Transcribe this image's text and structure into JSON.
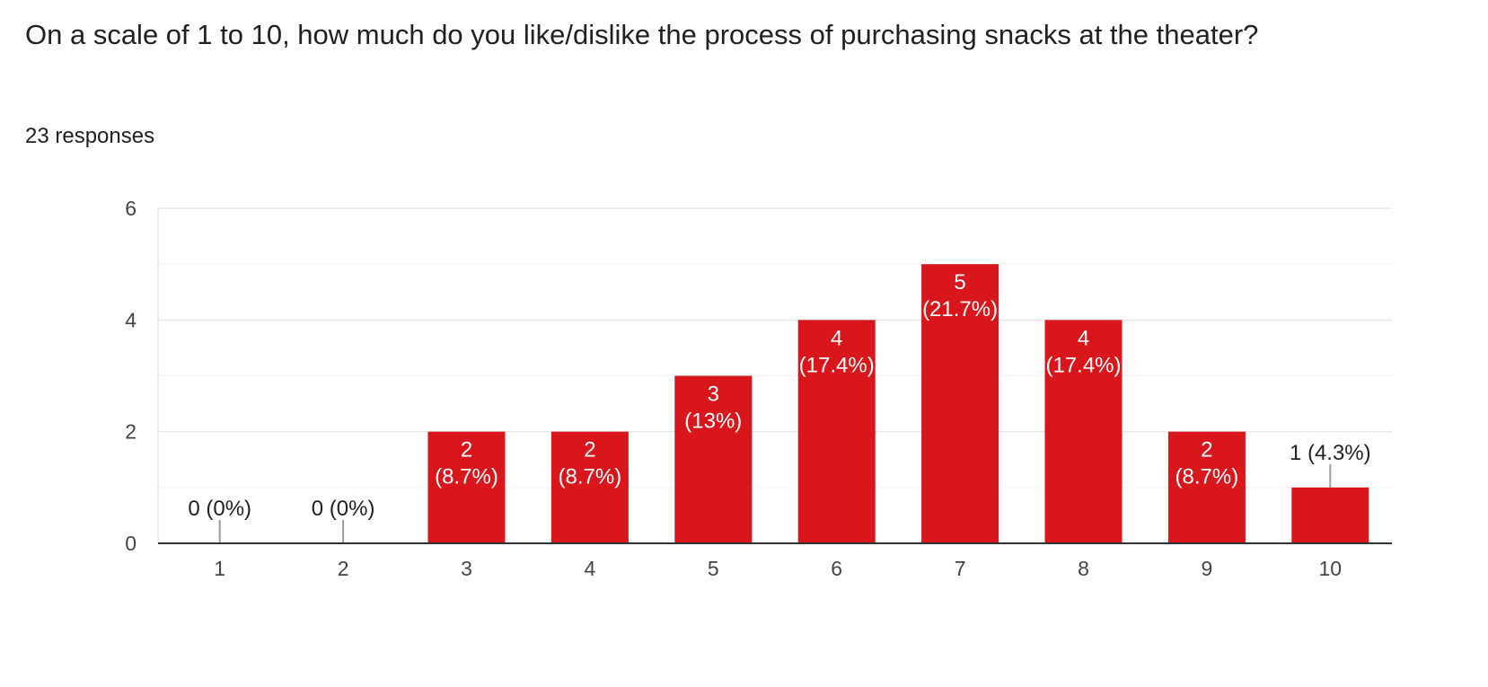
{
  "question": {
    "title": "On a scale of 1 to 10, how much do you like/dislike the process of purchasing snacks at the theater?",
    "responses_text": "23 responses"
  },
  "colors": {
    "bar": "#d9161b",
    "grid": "#e8e8e8",
    "axis": "#333333",
    "leader": "#9e9e9e"
  },
  "chart_data": {
    "type": "bar",
    "categories": [
      "1",
      "2",
      "3",
      "4",
      "5",
      "6",
      "7",
      "8",
      "9",
      "10"
    ],
    "values": [
      0,
      0,
      2,
      2,
      3,
      4,
      5,
      4,
      2,
      1
    ],
    "data_labels": [
      "0 (0%)",
      "0 (0%)",
      "2 (8.7%)",
      "2 (8.7%)",
      "3 (13%)",
      "4 (17.4%)",
      "5 (21.7%)",
      "4 (17.4%)",
      "2 (8.7%)",
      "1 (4.3%)"
    ],
    "ylim": [
      0,
      6
    ],
    "yticks": [
      0,
      2,
      4,
      6
    ],
    "minor_gridlines": [
      1,
      3,
      5
    ],
    "grid": true,
    "legend": "none",
    "title": "",
    "xlabel": "",
    "ylabel": ""
  }
}
